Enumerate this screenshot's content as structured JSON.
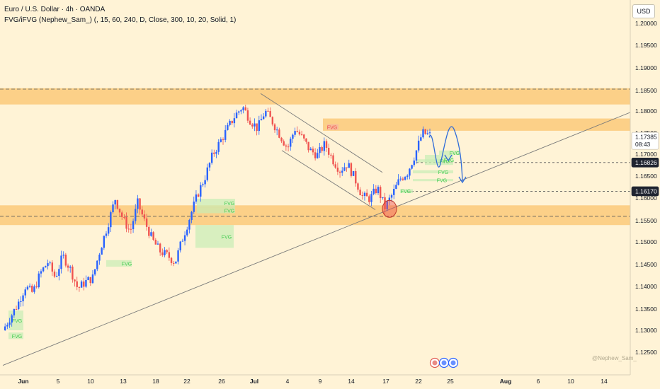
{
  "header": {
    "symbol_line": "Euro / U.S. Dollar · 4h · OANDA",
    "indicator_line": "FVG/iFVG (Nephew_Sam_) (, 15, 60, 240, D, Close, 300, 10, 20, Solid, 1)"
  },
  "currency_button": "USD",
  "watermark": "@Nephew_Sam_",
  "colors": {
    "background": "#fff3d6",
    "zone": "#fbc97a",
    "bull": "#2962ff",
    "bear": "#ef5350",
    "fvg_box": "#c8ecb5",
    "fvg_text": "#3fcb4e",
    "projection": "#2f6bd8"
  },
  "price_axis": {
    "ticks": [
      "1.20000",
      "1.19500",
      "1.19000",
      "1.18500",
      "1.18000",
      "1.17500",
      "1.17000",
      "1.16500",
      "1.16000",
      "1.15500",
      "1.15000",
      "1.14500",
      "1.14000",
      "1.13500",
      "1.13000",
      "1.12500"
    ],
    "badges": [
      {
        "label": "1.17385",
        "sub": "08:43",
        "style": "white"
      },
      {
        "label": "1.16826",
        "style": "dark"
      },
      {
        "label": "1.16170",
        "style": "dark"
      }
    ]
  },
  "time_axis": {
    "labels": [
      "Jun",
      "5",
      "10",
      "13",
      "18",
      "22",
      "26",
      "Jul",
      "4",
      "9",
      "14",
      "17",
      "22",
      "25",
      "Aug",
      "6",
      "10",
      "14"
    ]
  },
  "fvg_labels": [
    "FVG",
    "FVG",
    "FVG",
    "FVG",
    "FVG",
    "FVG",
    "FVG",
    "FVG",
    "FVG",
    "FVG",
    "FVG",
    "FVG",
    "FVG"
  ],
  "chart_data": {
    "type": "candlestick",
    "instrument": "Euro / U.S. Dollar",
    "timeframe": "4h",
    "source": "OANDA",
    "y_range": [
      1.1205,
      1.2045
    ],
    "zones": [
      [
        1.1815,
        1.1852
      ],
      [
        1.154,
        1.1585
      ]
    ],
    "horizontal_levels": [
      1.185,
      1.156,
      1.16826,
      1.1617
    ],
    "current_price": 1.17385,
    "fvg_zones": [
      {
        "low": 1.13,
        "high": 1.1345
      },
      {
        "low": 1.128,
        "high": 1.1295
      },
      {
        "low": 1.1445,
        "high": 1.146
      },
      {
        "low": 1.158,
        "high": 1.16
      },
      {
        "low": 1.1567,
        "high": 1.158
      },
      {
        "low": 1.1488,
        "high": 1.154
      },
      {
        "low": 1.1757,
        "high": 1.177
      },
      {
        "low": 1.1677,
        "high": 1.17
      },
      {
        "low": 1.1658,
        "high": 1.1665
      },
      {
        "low": 1.164,
        "high": 1.1645
      },
      {
        "low": 1.1613,
        "high": 1.1622
      },
      {
        "low": 1.1683,
        "high": 1.169
      },
      {
        "low": 1.17,
        "high": 1.171
      }
    ],
    "path": [
      1.13,
      1.133,
      1.136,
      1.14,
      1.1385,
      1.143,
      1.1455,
      1.142,
      1.147,
      1.144,
      1.1395,
      1.141,
      1.142,
      1.1485,
      1.154,
      1.16,
      1.1555,
      1.1525,
      1.159,
      1.1545,
      1.1505,
      1.148,
      1.147,
      1.1455,
      1.151,
      1.156,
      1.161,
      1.165,
      1.17,
      1.173,
      1.176,
      1.179,
      1.181,
      1.178,
      1.176,
      1.18,
      1.1775,
      1.1745,
      1.1715,
      1.176,
      1.1738,
      1.171,
      1.17,
      1.1725,
      1.169,
      1.1665,
      1.168,
      1.1645,
      1.1605,
      1.16,
      1.1625,
      1.158,
      1.161,
      1.1645,
      1.166,
      1.17,
      1.175,
      1.1745
    ],
    "projection": [
      1.174,
      1.168,
      1.1755,
      1.164
    ]
  }
}
